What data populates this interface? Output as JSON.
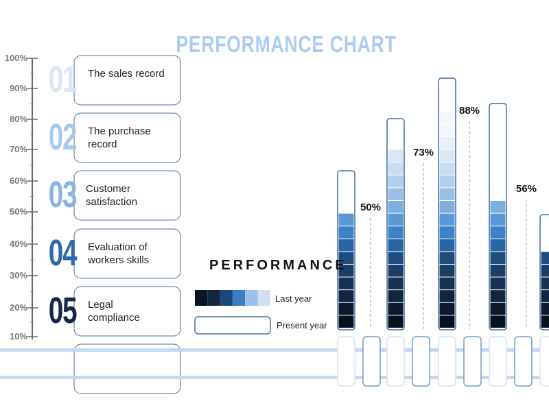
{
  "title": "PERFORMANCE CHART",
  "axis_labels": [
    "100%",
    "90%",
    "80%",
    "70%",
    "60%",
    "50%",
    "40%",
    "30%",
    "20%",
    "10%"
  ],
  "items": [
    {
      "number": "01",
      "label": "The sales record"
    },
    {
      "number": "02",
      "label": "The purchase record"
    },
    {
      "number": "03",
      "label": "Customer satisfaction"
    },
    {
      "number": "04",
      "label": "Evaluation of workers skills"
    },
    {
      "number": "05",
      "label": "Legal compliance"
    }
  ],
  "legend": {
    "title": "PERFORMANCE",
    "last_year": "Last year",
    "present_year": "Present year"
  },
  "value_labels": [
    "50%",
    "73%",
    "88%",
    "56%"
  ]
}
